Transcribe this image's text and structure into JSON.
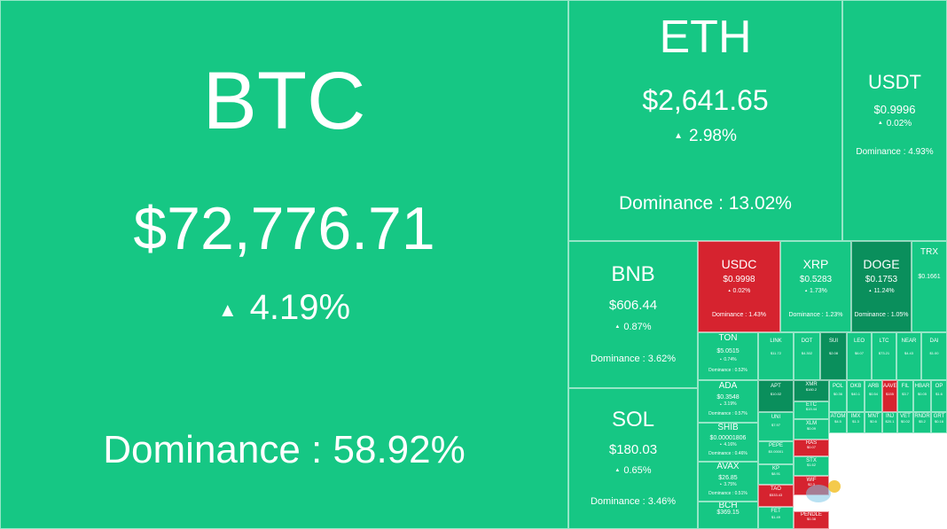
{
  "colors": {
    "up": "#16c784",
    "up_dark": "#0a8f5c",
    "down": "#d6232f",
    "text": "#ffffff"
  },
  "arrow_up": "▲",
  "dominance_prefix": "Dominance : ",
  "tiles": [
    {
      "symbol": "BTC",
      "price": "$72,776.71",
      "change": "4.19%",
      "dominance": "58.92%",
      "color": "up",
      "tier": "xl"
    },
    {
      "symbol": "ETH",
      "price": "$2,641.65",
      "change": "2.98%",
      "dominance": "13.02%",
      "color": "up",
      "tier": "l"
    },
    {
      "symbol": "USDT",
      "price": "$0.9996",
      "change": "0.02%",
      "dominance": "4.93%",
      "color": "up",
      "tier": "m"
    },
    {
      "symbol": "BNB",
      "price": "$606.44",
      "change": "0.87%",
      "dominance": "3.62%",
      "color": "up",
      "tier": "ml"
    },
    {
      "symbol": "SOL",
      "price": "$180.03",
      "change": "0.65%",
      "dominance": "3.46%",
      "color": "up",
      "tier": "ml"
    },
    {
      "symbol": "USDC",
      "price": "$0.9998",
      "change": "0.02%",
      "dominance": "1.43%",
      "color": "down",
      "tier": "s"
    },
    {
      "symbol": "XRP",
      "price": "$0.5283",
      "change": "1.73%",
      "dominance": "1.23%",
      "color": "up",
      "tier": "s"
    },
    {
      "symbol": "DOGE",
      "price": "$0.1753",
      "change": "11.24%",
      "dominance": "1.05%",
      "color": "up_dark",
      "tier": "s"
    },
    {
      "symbol": "TRX",
      "price": "$0.1661",
      "change": "",
      "dominance": "",
      "color": "up",
      "tier": "xs"
    },
    {
      "symbol": "TON",
      "price": "$5.0515",
      "change": "0.74%",
      "dominance": "0.52%",
      "color": "up",
      "tier": "xs"
    },
    {
      "symbol": "ADA",
      "price": "$0.3548",
      "change": "3.19%",
      "dominance": "0.57%",
      "color": "up",
      "tier": "xs"
    },
    {
      "symbol": "SHIB",
      "price": "$0.00001806",
      "change": "4.16%",
      "dominance": "0.46%",
      "color": "up",
      "tier": "xs"
    },
    {
      "symbol": "AVAX",
      "price": "$26.85",
      "change": "3.75%",
      "dominance": "0.51%",
      "color": "up",
      "tier": "xs"
    },
    {
      "symbol": "BCH",
      "price": "$369.15",
      "change": "",
      "dominance": "",
      "color": "up",
      "tier": "xs"
    },
    {
      "symbol": "LINK",
      "price": "$11.72",
      "change": "",
      "dominance": "",
      "color": "up",
      "tier": "xxs"
    },
    {
      "symbol": "DOT",
      "price": "$4.302",
      "change": "",
      "dominance": "",
      "color": "up",
      "tier": "xxs"
    },
    {
      "symbol": "SUI",
      "price": "$2.08",
      "change": "",
      "dominance": "",
      "color": "up_dark",
      "tier": "xxs"
    },
    {
      "symbol": "LEO",
      "price": "$6.07",
      "change": "",
      "dominance": "",
      "color": "up",
      "tier": "xxs"
    },
    {
      "symbol": "LTC",
      "price": "$73.21",
      "change": "",
      "dominance": "",
      "color": "up",
      "tier": "xxs"
    },
    {
      "symbol": "NEAR",
      "price": "$4.43",
      "change": "",
      "dominance": "",
      "color": "up",
      "tier": "xxs"
    },
    {
      "symbol": "DAI",
      "price": "$1.00",
      "change": "",
      "dominance": "",
      "color": "up",
      "tier": "xxs"
    },
    {
      "symbol": "APT",
      "price": "$10.02",
      "change": "",
      "dominance": "",
      "color": "up_dark",
      "tier": "xxs"
    },
    {
      "symbol": "UNI",
      "price": "$7.97",
      "change": "",
      "dominance": "",
      "color": "up",
      "tier": "xxs"
    },
    {
      "symbol": "PEPE",
      "price": "$0.00001",
      "change": "",
      "dominance": "",
      "color": "up",
      "tier": "xxs"
    },
    {
      "symbol": "KP",
      "price": "$8.91",
      "change": "",
      "dominance": "",
      "color": "up",
      "tier": "xxs"
    },
    {
      "symbol": "TAO",
      "price": "$533.43",
      "change": "",
      "dominance": "",
      "color": "down",
      "tier": "xxs"
    },
    {
      "symbol": "FET",
      "price": "$1.49",
      "change": "",
      "dominance": "",
      "color": "up",
      "tier": "xxs"
    },
    {
      "symbol": "XMR",
      "price": "$160.2",
      "change": "",
      "dominance": "",
      "color": "up_dark",
      "tier": "xxs"
    },
    {
      "symbol": "ETC",
      "price": "$19.44",
      "change": "",
      "dominance": "",
      "color": "up",
      "tier": "xxs"
    },
    {
      "symbol": "XLM",
      "price": "$0.09",
      "change": "",
      "dominance": "",
      "color": "up",
      "tier": "xxs"
    },
    {
      "symbol": "RAS",
      "price": "$0.07",
      "change": "",
      "dominance": "",
      "color": "down",
      "tier": "xxs"
    },
    {
      "symbol": "STX",
      "price": "$1.62",
      "change": "",
      "dominance": "",
      "color": "up",
      "tier": "xxs"
    },
    {
      "symbol": "WIF",
      "price": "$2.3",
      "change": "",
      "dominance": "",
      "color": "down",
      "tier": "xxs"
    },
    {
      "symbol": "POL",
      "price": "$0.36",
      "change": "",
      "dominance": "",
      "color": "up",
      "tier": "xxs"
    },
    {
      "symbol": "OKB",
      "price": "$40.1",
      "change": "",
      "dominance": "",
      "color": "up",
      "tier": "xxs"
    },
    {
      "symbol": "ARB",
      "price": "$0.54",
      "change": "",
      "dominance": "",
      "color": "up",
      "tier": "xxs"
    },
    {
      "symbol": "AAVE",
      "price": "$155",
      "change": "",
      "dominance": "",
      "color": "down",
      "tier": "xxs"
    },
    {
      "symbol": "FIL",
      "price": "$3.7",
      "change": "",
      "dominance": "",
      "color": "up",
      "tier": "xxs"
    },
    {
      "symbol": "HBAR",
      "price": "$0.05",
      "change": "",
      "dominance": "",
      "color": "up",
      "tier": "xxs"
    },
    {
      "symbol": "OP",
      "price": "$1.6",
      "change": "",
      "dominance": "",
      "color": "up",
      "tier": "xxs"
    },
    {
      "symbol": "ATOM",
      "price": "$4.5",
      "change": "",
      "dominance": "",
      "color": "up",
      "tier": "xxs"
    },
    {
      "symbol": "IMX",
      "price": "$1.3",
      "change": "",
      "dominance": "",
      "color": "up",
      "tier": "xxs"
    },
    {
      "symbol": "MNT",
      "price": "$0.6",
      "change": "",
      "dominance": "",
      "color": "up",
      "tier": "xxs"
    },
    {
      "symbol": "INJ",
      "price": "$20.1",
      "change": "",
      "dominance": "",
      "color": "up",
      "tier": "xxs"
    },
    {
      "symbol": "VET",
      "price": "$0.02",
      "change": "",
      "dominance": "",
      "color": "up",
      "tier": "xxs"
    },
    {
      "symbol": "RNDR",
      "price": "$5.2",
      "change": "",
      "dominance": "",
      "color": "up",
      "tier": "xxs"
    },
    {
      "symbol": "GRT",
      "price": "$0.16",
      "change": "",
      "dominance": "",
      "color": "up",
      "tier": "xxs"
    },
    {
      "symbol": "PENDLE",
      "price": "$0.38",
      "change": "",
      "dominance": "",
      "color": "down",
      "tier": "xxs"
    }
  ]
}
